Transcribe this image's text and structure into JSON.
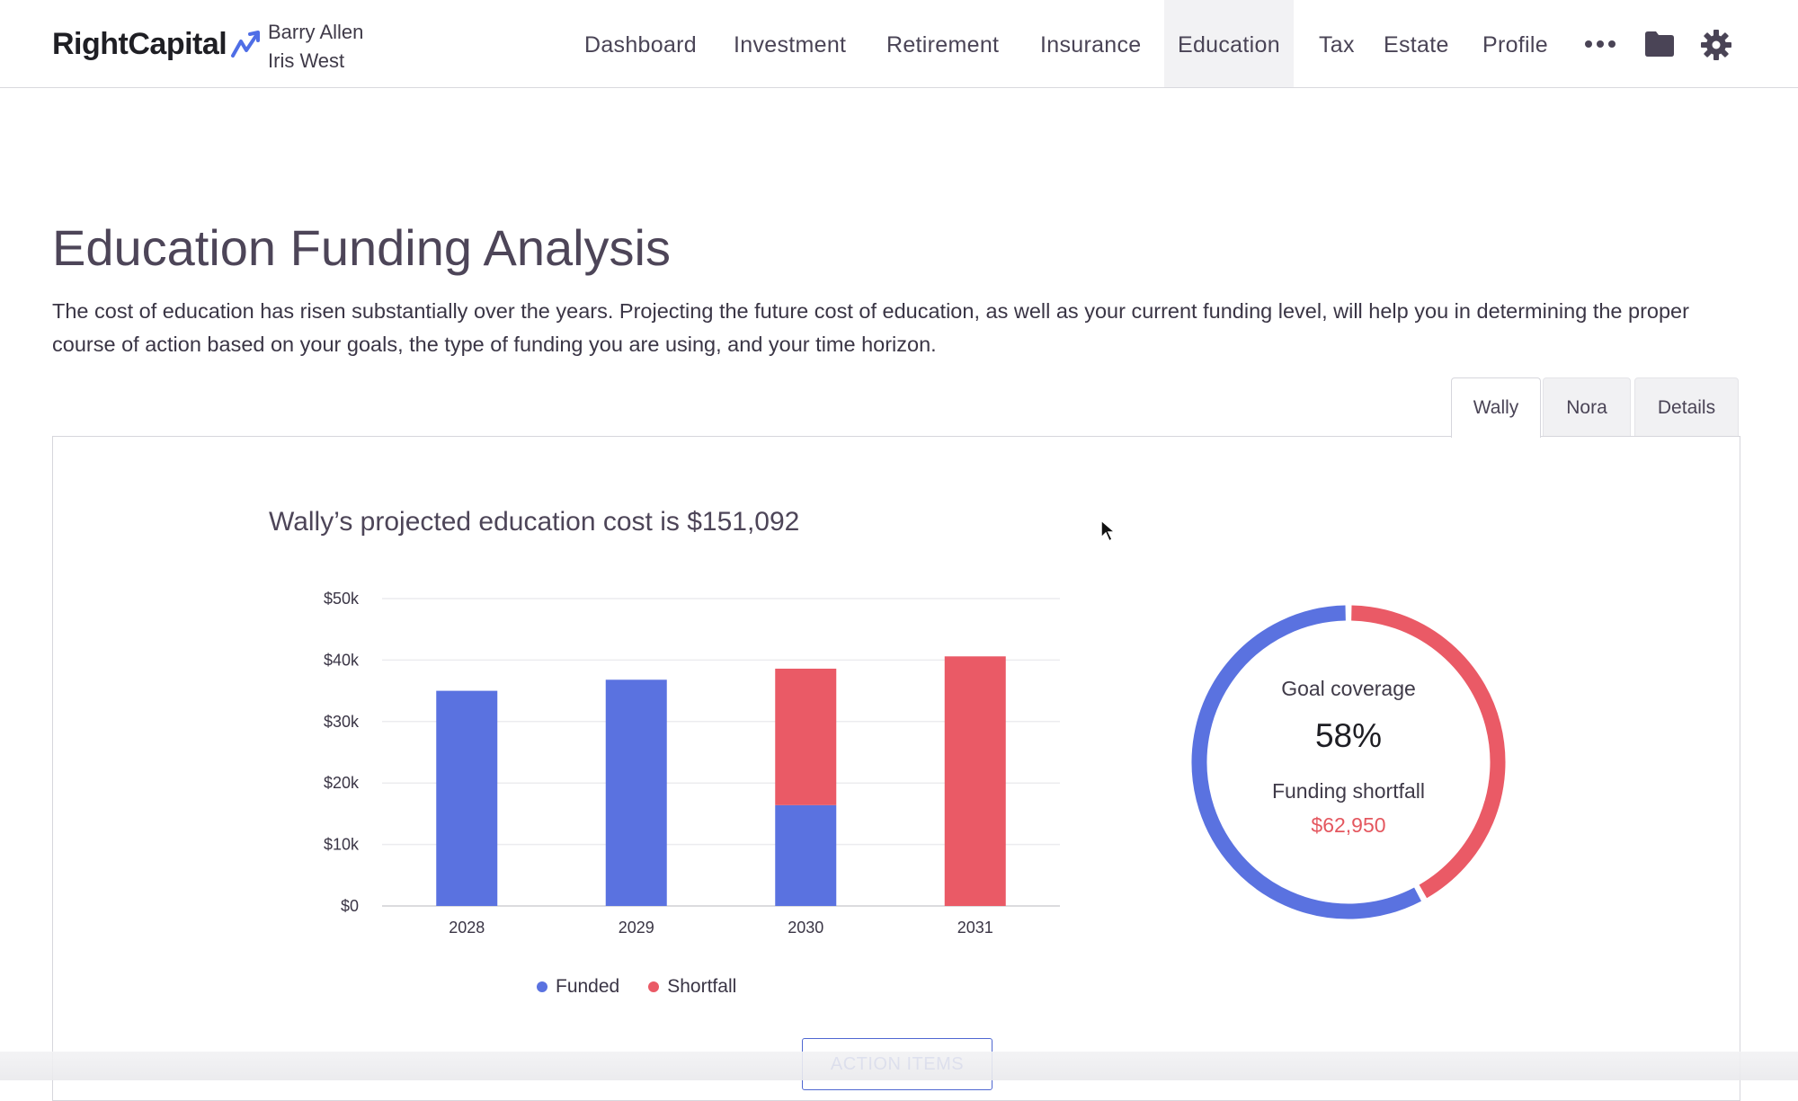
{
  "header": {
    "logo_text": "RightCapital",
    "clients": [
      "Barry Allen",
      "Iris West"
    ],
    "nav": [
      {
        "label": "Dashboard",
        "active": false
      },
      {
        "label": "Investment",
        "active": false
      },
      {
        "label": "Retirement",
        "active": false
      },
      {
        "label": "Insurance",
        "active": false
      },
      {
        "label": "Education",
        "active": true
      },
      {
        "label": "Tax",
        "active": false
      },
      {
        "label": "Estate",
        "active": false
      },
      {
        "label": "Profile",
        "active": false
      }
    ],
    "icons": [
      "more-icon",
      "folder-icon",
      "gear-icon"
    ]
  },
  "page": {
    "title": "Education Funding Analysis",
    "intro": "The cost of education has risen substantially over the years. Projecting the future cost of education, as well as your current funding level, will help you in determining the proper course of action based on your goals, the type of funding you are using, and your time horizon.",
    "tabs": [
      {
        "label": "Wally",
        "active": true
      },
      {
        "label": "Nora",
        "active": false
      },
      {
        "label": "Details",
        "active": false
      }
    ]
  },
  "chart_data": {
    "type": "bar",
    "stacked": true,
    "title": "Wally’s projected education cost is $151,092",
    "categories": [
      "2028",
      "2029",
      "2030",
      "2031"
    ],
    "series": [
      {
        "name": "Funded",
        "color": "#5a72e0",
        "values": [
          35000,
          36800,
          16400,
          0
        ]
      },
      {
        "name": "Shortfall",
        "color": "#ea5a66",
        "values": [
          0,
          0,
          22200,
          40600
        ]
      }
    ],
    "ylim": [
      0,
      50000
    ],
    "yticks": [
      "$0",
      "$10k",
      "$20k",
      "$30k",
      "$40k",
      "$50k"
    ],
    "legend_position": "bottom"
  },
  "coverage": {
    "label": "Goal coverage",
    "percent_text": "58%",
    "percent": 58,
    "shortfall_label": "Funding shortfall",
    "shortfall_value": "$62,950",
    "funded_color": "#5a72e0",
    "shortfall_color": "#ea5a66"
  },
  "actions": {
    "action_items_label": "ACTION ITEMS"
  }
}
